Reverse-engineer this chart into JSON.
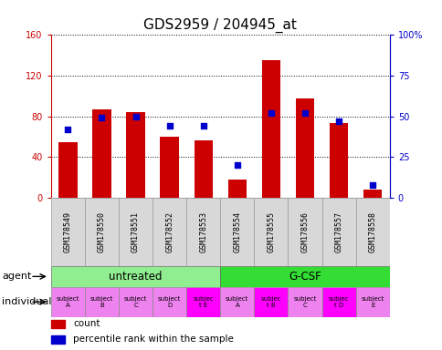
{
  "title": "GDS2959 / 204945_at",
  "samples": [
    "GSM178549",
    "GSM178550",
    "GSM178551",
    "GSM178552",
    "GSM178553",
    "GSM178554",
    "GSM178555",
    "GSM178556",
    "GSM178557",
    "GSM178558"
  ],
  "counts": [
    55,
    87,
    84,
    60,
    56,
    18,
    135,
    98,
    73,
    8
  ],
  "percentile_ranks": [
    42,
    49,
    50,
    44,
    44,
    20,
    52,
    52,
    47,
    8
  ],
  "agent_groups": [
    {
      "label": "untreated",
      "start": 0,
      "end": 5,
      "color": "#90ee90"
    },
    {
      "label": "G-CSF",
      "start": 5,
      "end": 10,
      "color": "#33dd33"
    }
  ],
  "individual_labels": [
    "subject\nA",
    "subject\nB",
    "subject\nC",
    "subject\nD",
    "subjec\nt E",
    "subject\nA",
    "subjec\nt B",
    "subject\nC",
    "subjec\nt D",
    "subject\nE"
  ],
  "individual_colors": [
    "#ee82ee",
    "#ee82ee",
    "#ee82ee",
    "#ee82ee",
    "#ff00ff",
    "#ee82ee",
    "#ff00ff",
    "#ee82ee",
    "#ff00ff",
    "#ee82ee"
  ],
  "ylim_left": [
    0,
    160
  ],
  "ylim_right": [
    0,
    100
  ],
  "yticks_left": [
    0,
    40,
    80,
    120,
    160
  ],
  "yticks_right": [
    0,
    25,
    50,
    75,
    100
  ],
  "ytick_labels_left": [
    "0",
    "40",
    "80",
    "120",
    "160"
  ],
  "ytick_labels_right": [
    "0",
    "25",
    "50",
    "75",
    "100%"
  ],
  "bar_color": "#cc0000",
  "dot_color": "#0000cc",
  "grid_color": "#555555",
  "title_fontsize": 11,
  "tick_fontsize": 7,
  "label_fontsize": 8,
  "sample_bg": "#d8d8d8"
}
